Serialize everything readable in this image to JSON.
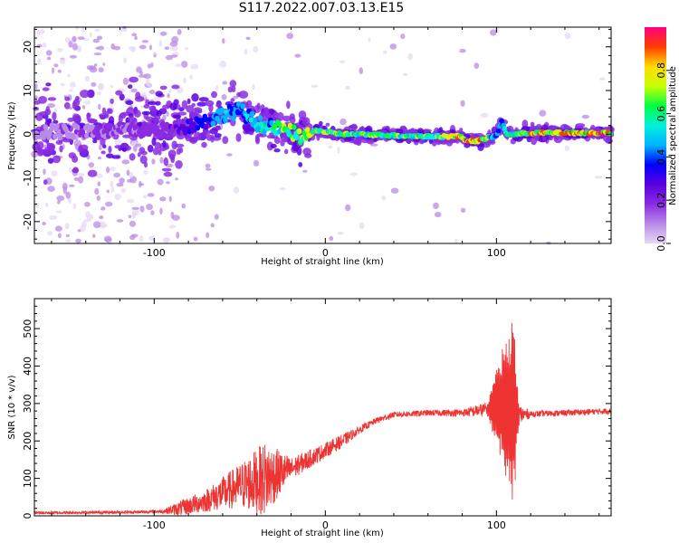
{
  "title": "S117.2022.007.03.13.E15",
  "colors": {
    "signal": "#ee3333",
    "colormap": [
      "#e8d8f4",
      "#b98ae6",
      "#8a2be2",
      "#5a00e0",
      "#0000ff",
      "#00b4ff",
      "#00f0dc",
      "#00ff40",
      "#c8ff00",
      "#ffdc00",
      "#ff3c00",
      "#ff0080"
    ]
  },
  "chart_data": [
    {
      "type": "heatmap",
      "xlabel": "Height of straight line (km)",
      "ylabel": "Frequency (Hz)",
      "xlim": [
        -170,
        167
      ],
      "ylim": [
        -25,
        24.5
      ],
      "xticks": [
        -100,
        0,
        100
      ],
      "yticks": [
        -20,
        -10,
        0,
        10,
        20
      ],
      "colorbar": {
        "label": "Normalized spectral amplitude",
        "range": [
          0,
          1
        ],
        "ticks": [
          "0.0",
          "0.2",
          "0.4",
          "0.6",
          "0.8"
        ]
      },
      "ridge": {
        "description_points_x": [
          -170,
          -90,
          -80,
          -70,
          -60,
          -50,
          -45,
          -40,
          -30,
          -20,
          -15,
          -10,
          -5,
          0,
          10,
          20,
          40,
          60,
          70,
          80,
          82,
          90,
          95,
          100,
          103,
          106,
          110,
          120,
          167
        ],
        "frequency_y": [
          0.5,
          1.0,
          2.0,
          3.0,
          4.5,
          5.5,
          4.0,
          2.5,
          1.5,
          0.5,
          -0.5,
          -0.5,
          1.0,
          0.5,
          0.0,
          0.0,
          -0.3,
          -0.5,
          -0.5,
          -0.5,
          -1.5,
          -1.5,
          -0.8,
          -0.5,
          3.0,
          0.0,
          0.0,
          0.3,
          0.3
        ],
        "amplitude": [
          0.1,
          0.2,
          0.3,
          0.35,
          0.45,
          0.4,
          0.45,
          0.5,
          0.55,
          0.65,
          0.7,
          0.75,
          0.7,
          0.65,
          0.62,
          0.6,
          0.6,
          0.62,
          0.7,
          0.8,
          0.85,
          0.85,
          0.6,
          0.4,
          0.45,
          0.5,
          0.55,
          0.75,
          0.85
        ]
      }
    },
    {
      "type": "line",
      "xlabel": "Height of straight line (km)",
      "ylabel": "SNR (10 * v/v)",
      "xlim": [
        -170,
        167
      ],
      "ylim": [
        0,
        580
      ],
      "xticks": [
        -100,
        0,
        100
      ],
      "yticks": [
        0,
        100,
        200,
        300,
        400,
        500
      ],
      "series": [
        {
          "mean_x": [
            -170,
            -110,
            -95,
            -85,
            -70,
            -50,
            -35,
            -20,
            -10,
            0,
            10,
            20,
            30,
            40,
            60,
            80,
            95,
            100,
            110,
            113,
            120,
            140,
            167
          ],
          "mean_y": [
            8,
            10,
            12,
            20,
            40,
            80,
            100,
            125,
            150,
            175,
            200,
            230,
            255,
            270,
            275,
            275,
            285,
            290,
            285,
            270,
            272,
            275,
            280
          ],
          "noise_amp": [
            4,
            4,
            5,
            20,
            30,
            60,
            100,
            30,
            25,
            20,
            18,
            10,
            8,
            8,
            8,
            10,
            20,
            120,
            260,
            30,
            8,
            8,
            8
          ]
        }
      ]
    }
  ]
}
